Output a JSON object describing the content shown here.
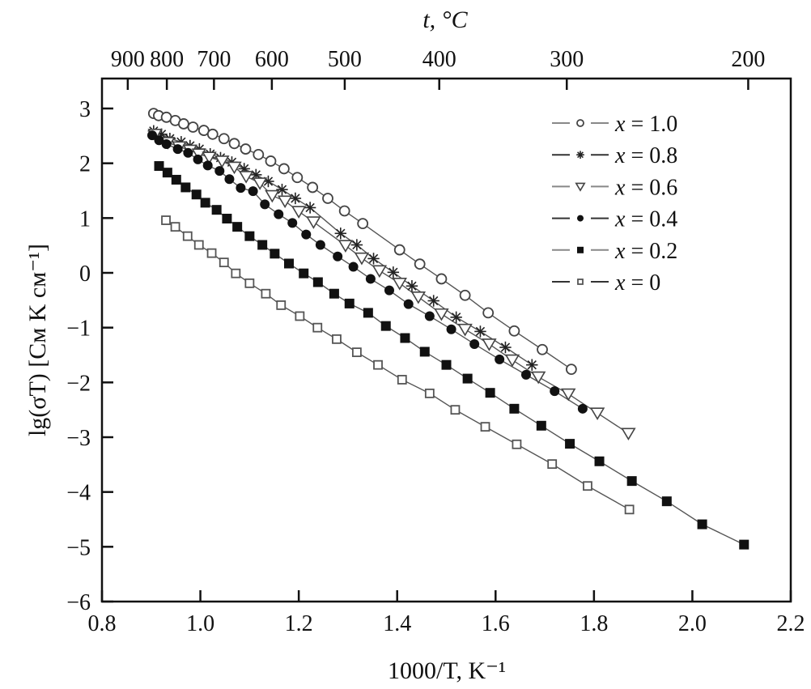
{
  "chart_data": {
    "type": "scatter",
    "title": "",
    "xlabel": "1000/T, K⁻¹",
    "ylabel": "lg(σT) [См K см⁻¹]",
    "top_xlabel": "t, °C",
    "xlim": [
      0.8,
      2.2
    ],
    "ylim": [
      -6,
      3
    ],
    "xticks": [
      0.8,
      1.0,
      1.2,
      1.4,
      1.6,
      1.8,
      2.0,
      2.2
    ],
    "xtick_labels": [
      "0.8",
      "1.0",
      "1.2",
      "1.4",
      "1.6",
      "1.8",
      "2.0",
      "2.2"
    ],
    "yticks": [
      3,
      2,
      1,
      0,
      -1,
      -2,
      -3,
      -4,
      -5,
      -6
    ],
    "ytick_labels": [
      "3",
      "2",
      "1",
      "0",
      "−1",
      "−2",
      "−3",
      "−4",
      "−5",
      "−6"
    ],
    "top_ticks_celsius": [
      900,
      800,
      700,
      600,
      500,
      400,
      300,
      200
    ],
    "top_tick_labels": [
      "900",
      "800",
      "700",
      "600",
      "500",
      "400",
      "300",
      "200"
    ],
    "grid": false,
    "legend_position": "top-right",
    "series": [
      {
        "name": "x = 1.0",
        "marker": "open-circle",
        "line_color": "#888888",
        "x": [
          0.905,
          0.915,
          0.931,
          0.949,
          0.966,
          0.985,
          1.007,
          1.025,
          1.048,
          1.069,
          1.092,
          1.118,
          1.143,
          1.17,
          1.197,
          1.228,
          1.259,
          1.293,
          1.33,
          1.405,
          1.446,
          1.49,
          1.538,
          1.585,
          1.638,
          1.695,
          1.754
        ],
        "y": [
          2.91,
          2.87,
          2.84,
          2.78,
          2.72,
          2.66,
          2.6,
          2.53,
          2.45,
          2.36,
          2.26,
          2.16,
          2.04,
          1.9,
          1.74,
          1.56,
          1.36,
          1.13,
          0.9,
          0.42,
          0.16,
          -0.11,
          -0.41,
          -0.73,
          -1.06,
          -1.4,
          -1.76
        ]
      },
      {
        "name": "x = 0.8",
        "marker": "asterisk",
        "line_color": "#333333",
        "x": [
          0.905,
          0.921,
          0.938,
          0.961,
          0.979,
          0.998,
          1.02,
          1.041,
          1.064,
          1.089,
          1.113,
          1.138,
          1.166,
          1.193,
          1.223,
          1.285,
          1.318,
          1.352,
          1.392,
          1.43,
          1.474,
          1.52,
          1.569,
          1.62,
          1.674
        ],
        "y": [
          2.59,
          2.53,
          2.45,
          2.39,
          2.32,
          2.26,
          2.17,
          2.1,
          2.02,
          1.9,
          1.79,
          1.67,
          1.52,
          1.36,
          1.19,
          0.72,
          0.51,
          0.26,
          0.01,
          -0.24,
          -0.51,
          -0.81,
          -1.07,
          -1.36,
          -1.68
        ]
      },
      {
        "name": "x = 0.6",
        "marker": "open-triangle-down",
        "line_color": "#888888",
        "x": [
          0.908,
          0.934,
          0.957,
          0.979,
          0.997,
          1.018,
          1.044,
          1.069,
          1.093,
          1.121,
          1.146,
          1.172,
          1.2,
          1.23,
          1.295,
          1.328,
          1.364,
          1.405,
          1.443,
          1.49,
          1.538,
          1.587,
          1.634,
          1.687,
          1.748,
          1.807,
          1.87
        ],
        "y": [
          2.53,
          2.38,
          2.3,
          2.24,
          2.17,
          2.11,
          2.04,
          1.93,
          1.76,
          1.64,
          1.41,
          1.31,
          1.12,
          0.93,
          0.5,
          0.27,
          0.04,
          -0.19,
          -0.44,
          -0.75,
          -1.03,
          -1.3,
          -1.59,
          -1.9,
          -2.21,
          -2.56,
          -2.93
        ]
      },
      {
        "name": "x = 0.4",
        "marker": "filled-circle",
        "line_color": "#333333",
        "x": [
          0.902,
          0.916,
          0.931,
          0.954,
          0.975,
          0.995,
          1.015,
          1.039,
          1.059,
          1.082,
          1.107,
          1.131,
          1.159,
          1.187,
          1.215,
          1.244,
          1.279,
          1.311,
          1.346,
          1.384,
          1.423,
          1.466,
          1.51,
          1.557,
          1.608,
          1.662,
          1.72,
          1.777
        ],
        "y": [
          2.51,
          2.42,
          2.35,
          2.26,
          2.19,
          2.07,
          1.96,
          1.86,
          1.71,
          1.55,
          1.49,
          1.25,
          1.07,
          0.91,
          0.7,
          0.51,
          0.3,
          0.11,
          -0.11,
          -0.32,
          -0.57,
          -0.79,
          -1.03,
          -1.3,
          -1.58,
          -1.86,
          -2.16,
          -2.48
        ]
      },
      {
        "name": "x = 0.2",
        "marker": "filled-square",
        "line_color": "#888888",
        "x": [
          0.916,
          0.933,
          0.951,
          0.97,
          0.992,
          1.01,
          1.033,
          1.054,
          1.075,
          1.1,
          1.126,
          1.151,
          1.18,
          1.21,
          1.239,
          1.272,
          1.303,
          1.341,
          1.377,
          1.416,
          1.456,
          1.5,
          1.543,
          1.589,
          1.638,
          1.693,
          1.751,
          1.811,
          1.877,
          1.948,
          2.02,
          2.105
        ],
        "y": [
          1.95,
          1.83,
          1.7,
          1.56,
          1.43,
          1.28,
          1.15,
          0.99,
          0.84,
          0.67,
          0.51,
          0.35,
          0.17,
          -0.01,
          -0.17,
          -0.38,
          -0.56,
          -0.73,
          -0.97,
          -1.19,
          -1.44,
          -1.68,
          -1.93,
          -2.19,
          -2.48,
          -2.79,
          -3.12,
          -3.44,
          -3.8,
          -4.17,
          -4.59,
          -4.96
        ]
      },
      {
        "name": "x = 0",
        "marker": "open-square",
        "line_color": "#333333",
        "x": [
          0.93,
          0.949,
          0.974,
          0.997,
          1.023,
          1.048,
          1.072,
          1.1,
          1.133,
          1.164,
          1.202,
          1.238,
          1.277,
          1.318,
          1.361,
          1.41,
          1.466,
          1.518,
          1.579,
          1.643,
          1.715,
          1.787,
          1.872
        ],
        "y": [
          0.96,
          0.84,
          0.67,
          0.51,
          0.36,
          0.19,
          -0.01,
          -0.19,
          -0.38,
          -0.59,
          -0.79,
          -1.0,
          -1.21,
          -1.45,
          -1.68,
          -1.95,
          -2.2,
          -2.5,
          -2.81,
          -3.13,
          -3.49,
          -3.89,
          -4.32
        ]
      }
    ]
  }
}
